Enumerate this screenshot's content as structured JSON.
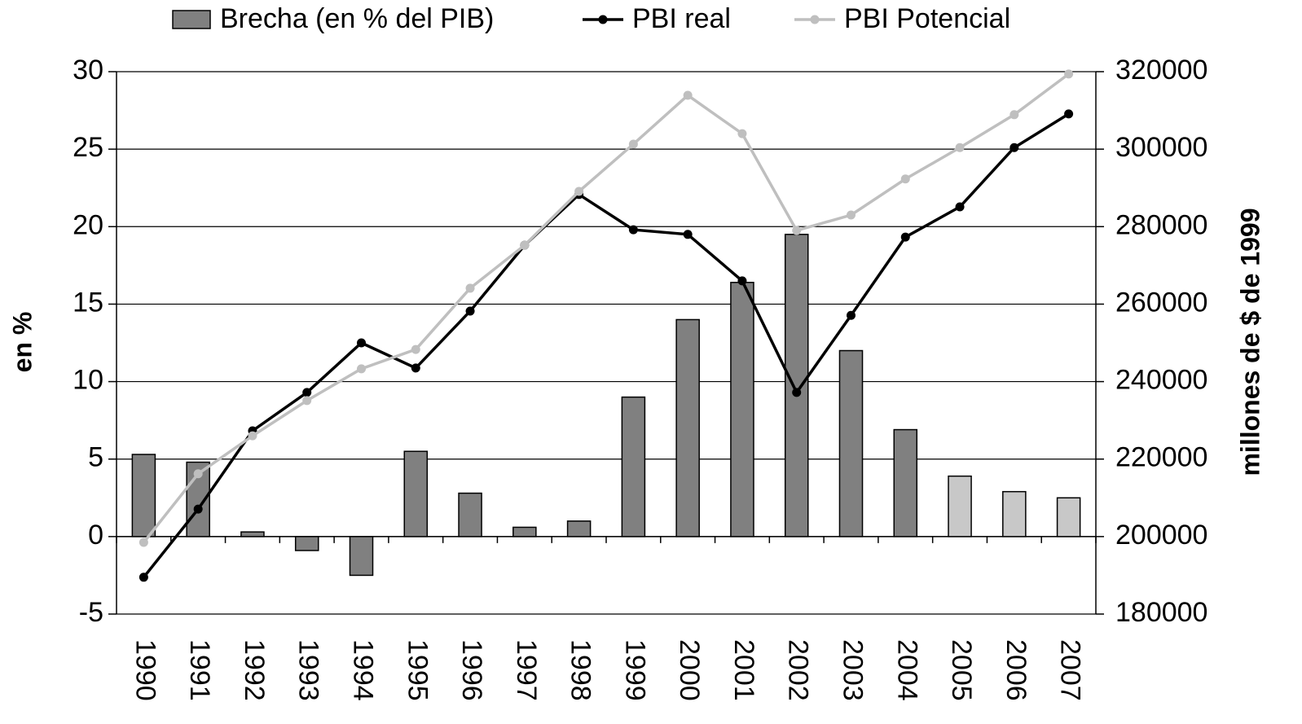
{
  "chart_data": {
    "type": "bar_line",
    "y_label": "en %",
    "y2_label": "millones de $ de 1999",
    "categories": [
      "1990",
      "1991",
      "1992",
      "1993",
      "1994",
      "1995",
      "1996",
      "1997",
      "1998",
      "1999",
      "2000",
      "2001",
      "2002",
      "2003",
      "2004",
      "2005",
      "2006",
      "2007"
    ],
    "series": [
      {
        "name": "Brecha (en % del PIB)",
        "type": "bar",
        "color": "#808080",
        "colors": [
          "#808080",
          "#808080",
          "#808080",
          "#808080",
          "#808080",
          "#808080",
          "#808080",
          "#808080",
          "#808080",
          "#808080",
          "#808080",
          "#808080",
          "#808080",
          "#808080",
          "#808080",
          "#c8c8c8",
          "#c8c8c8",
          "#c8c8c8"
        ],
        "values": [
          5.3,
          4.8,
          0.3,
          -0.9,
          -2.5,
          5.5,
          2.8,
          0.6,
          1.0,
          9.0,
          14.0,
          16.4,
          19.5,
          12.0,
          6.9,
          3.9,
          2.9,
          2.5
        ]
      },
      {
        "name": "PBI real",
        "type": "line",
        "axis": "y2",
        "color": "#000000",
        "values": [
          189500,
          207100,
          227300,
          237200,
          250000,
          243500,
          258200,
          275200,
          288300,
          279200,
          278000,
          266000,
          237200,
          257100,
          277300,
          285100,
          300400,
          309100
        ]
      },
      {
        "name": "PBI Potencial",
        "type": "line",
        "axis": "y2",
        "color": "#bfbfbf",
        "values": [
          198500,
          216200,
          226000,
          235100,
          243300,
          248300,
          264100,
          275200,
          289100,
          301300,
          313900,
          304000,
          279000,
          283000,
          292300,
          300400,
          308900,
          319400
        ]
      }
    ],
    "ylim": [
      -5,
      30
    ],
    "yticks": [
      -5,
      0,
      5,
      10,
      15,
      20,
      25,
      30
    ],
    "y2lim": [
      180000,
      320000
    ],
    "y2ticks": [
      180000,
      200000,
      220000,
      240000,
      260000,
      280000,
      300000,
      320000
    ],
    "grid": true,
    "legend": "top"
  }
}
